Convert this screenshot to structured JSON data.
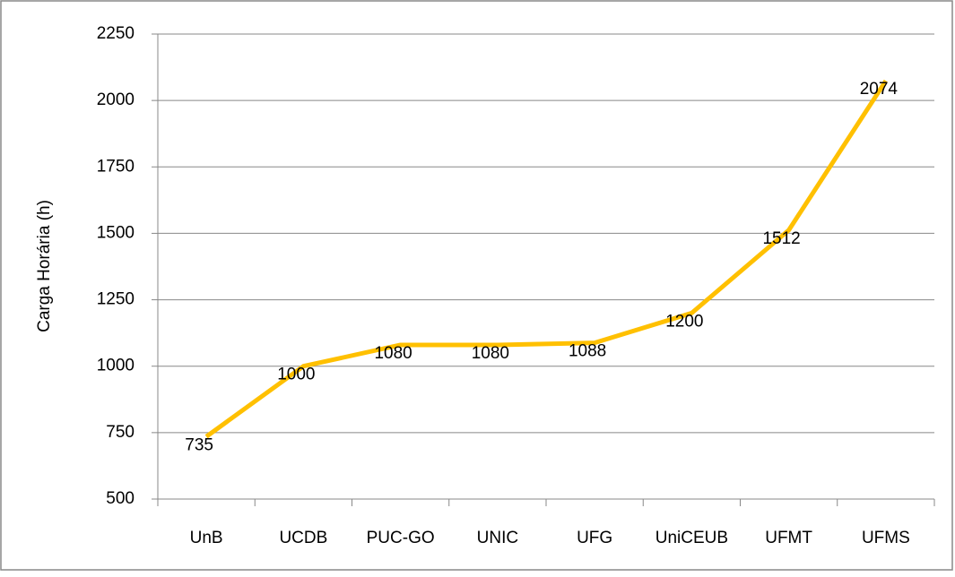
{
  "chart_data": {
    "type": "line",
    "y_label": "Carga Horária (h)",
    "categories": [
      "UnB",
      "UCDB",
      "PUC-GO",
      "UNIC",
      "UFG",
      "UniCEUB",
      "UFMT",
      "UFMS"
    ],
    "series": [
      {
        "name": "Carga Horária",
        "color": "#ffc000",
        "values": [
          735,
          1000,
          1080,
          1080,
          1088,
          1200,
          1512,
          2074
        ]
      }
    ],
    "ylim": [
      500,
      2250
    ],
    "yticks": [
      500,
      750,
      1000,
      1250,
      1500,
      1750,
      2000,
      2250
    ],
    "grid": true
  }
}
